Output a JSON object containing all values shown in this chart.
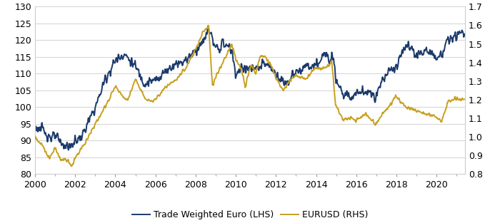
{
  "lhs_label": "Trade Weighted Euro (LHS)",
  "rhs_label": "EURUSD (RHS)",
  "lhs_color": "#1b3a6b",
  "rhs_color": "#c8a020",
  "lhs_ylim": [
    80,
    130
  ],
  "rhs_ylim": [
    0.8,
    1.7
  ],
  "lhs_yticks": [
    80,
    85,
    90,
    95,
    100,
    105,
    110,
    115,
    120,
    125,
    130
  ],
  "rhs_yticks": [
    0.8,
    0.9,
    1.0,
    1.1,
    1.2,
    1.3,
    1.4,
    1.5,
    1.6,
    1.7
  ],
  "xticks": [
    2000,
    2002,
    2004,
    2006,
    2008,
    2010,
    2012,
    2014,
    2016,
    2018,
    2020
  ],
  "lhs_linewidth": 1.4,
  "rhs_linewidth": 1.4,
  "background_color": "#ffffff",
  "grid_color": "#cccccc",
  "font_size": 9,
  "legend_fontsize": 9
}
